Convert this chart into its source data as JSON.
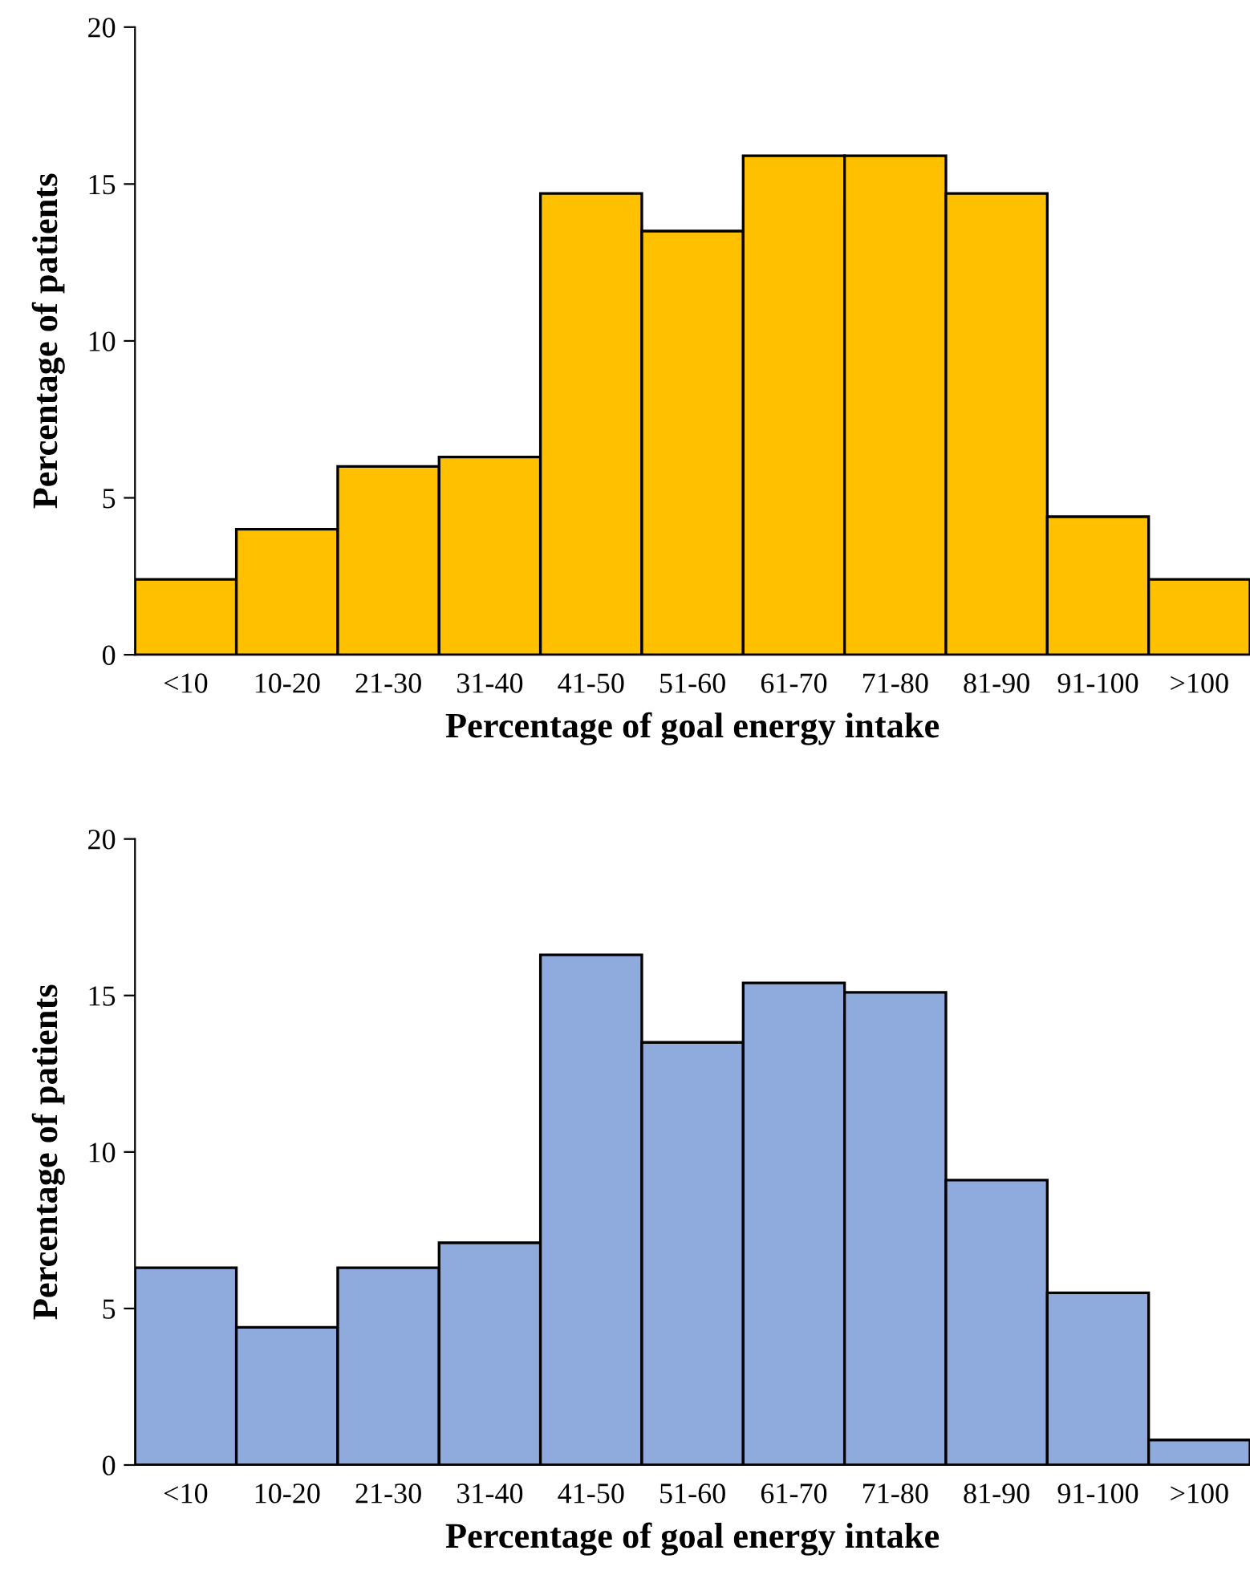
{
  "chart_data": [
    {
      "type": "bar",
      "xlabel": "Percentage of goal energy intake",
      "ylabel": "Percentage of patients",
      "categories": [
        "<10",
        "10-20",
        "21-30",
        "31-40",
        "41-50",
        "51-60",
        "61-70",
        "71-80",
        "81-90",
        "91-100",
        ">100"
      ],
      "series": [
        {
          "color": "#ffc000",
          "values": [
            2.4,
            4.0,
            6.0,
            6.3,
            14.7,
            13.5,
            15.9,
            15.9,
            14.7,
            4.4,
            2.4
          ]
        }
      ],
      "ylim": [
        0,
        20
      ],
      "yticks": [
        0,
        5,
        10,
        15,
        20
      ],
      "grid": false,
      "legend": false
    },
    {
      "type": "bar",
      "xlabel": "Percentage of goal energy intake",
      "ylabel": "Percentage of patients",
      "categories": [
        "<10",
        "10-20",
        "21-30",
        "31-40",
        "41-50",
        "51-60",
        "61-70",
        "71-80",
        "81-90",
        "91-100",
        ">100"
      ],
      "series": [
        {
          "color": "#8faadc",
          "values": [
            6.3,
            4.4,
            6.3,
            7.1,
            16.3,
            13.5,
            15.4,
            15.1,
            9.1,
            5.5,
            0.8
          ]
        }
      ],
      "ylim": [
        0,
        20
      ],
      "yticks": [
        0,
        5,
        10,
        15,
        20
      ],
      "grid": false,
      "legend": false
    }
  ]
}
